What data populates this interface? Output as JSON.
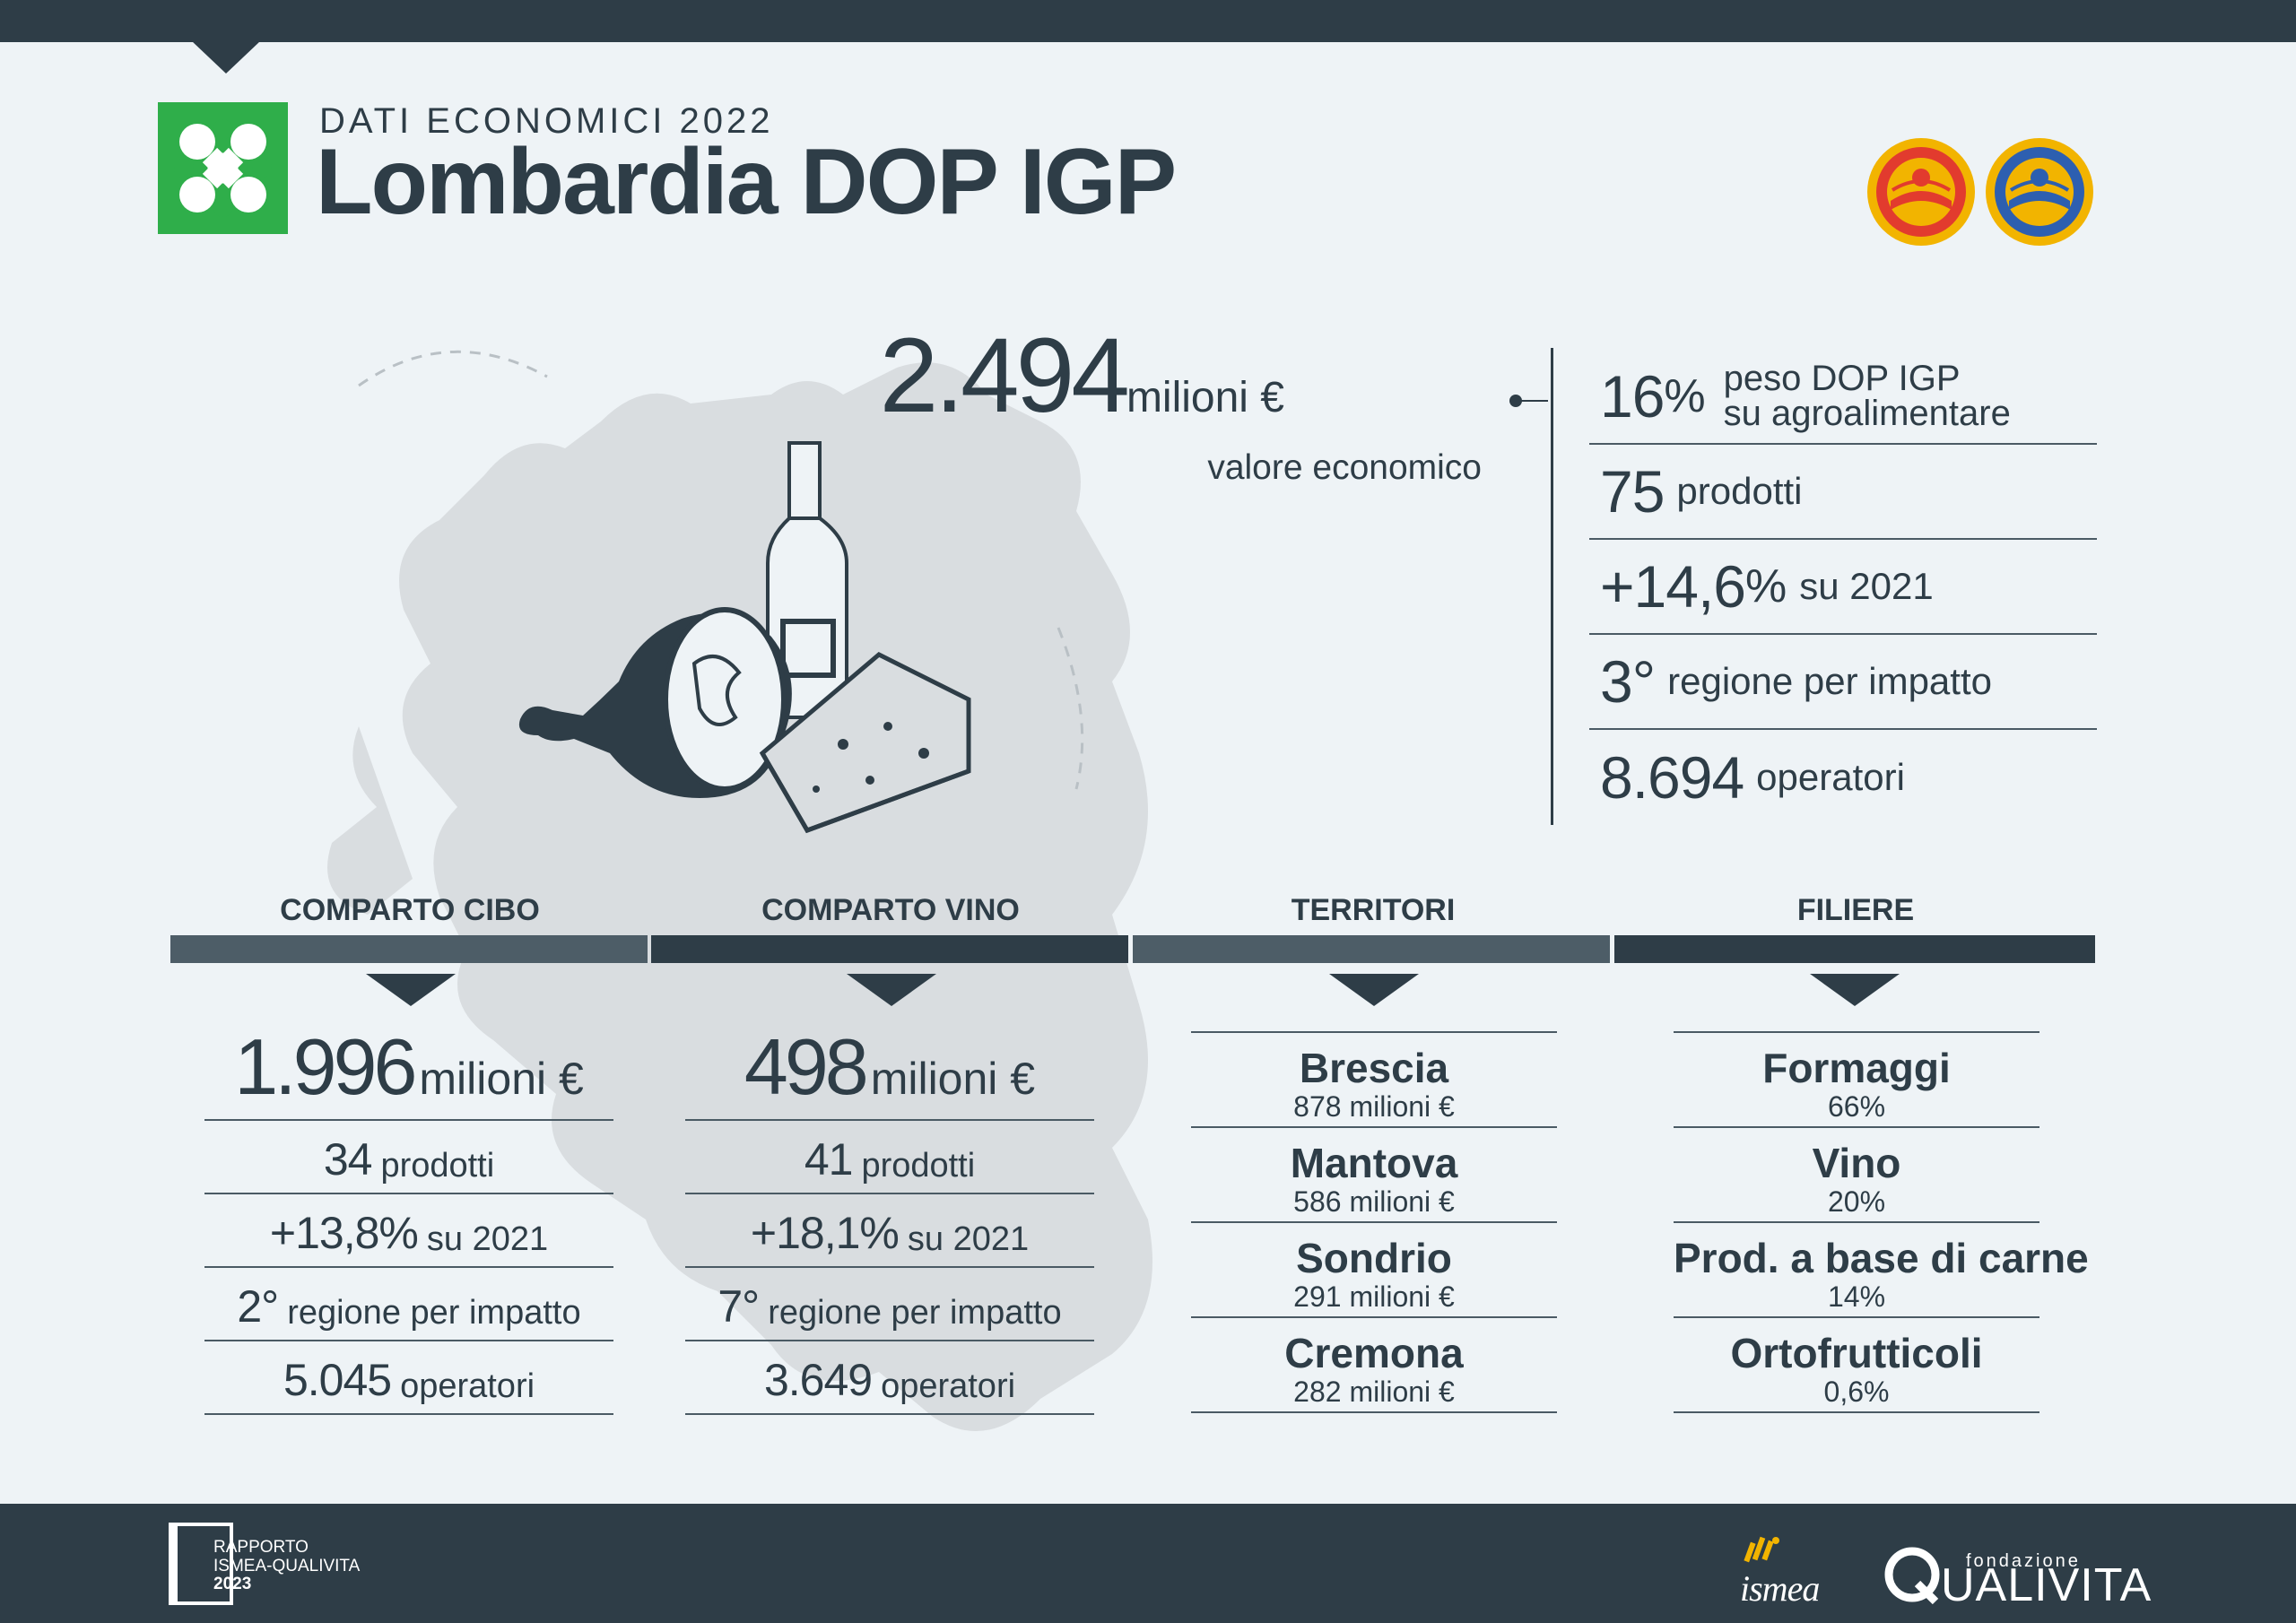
{
  "header": {
    "subtitle": "DATI ECONOMICI 2022",
    "title": "Lombardia DOP IGP"
  },
  "colors": {
    "dark": "#2e3d47",
    "accent_green": "#2fae4a",
    "bar_light": "#4d5d67",
    "background": "#eef3f6"
  },
  "icons": [
    "lombardia-region-logo",
    "dop-seal-icon",
    "igp-seal-icon",
    "region-map",
    "food-illustration",
    "ismea-logo-icon",
    "qualivita-logo-icon"
  ],
  "hero": {
    "value": "2.494",
    "unit": "milioni €",
    "label": "valore economico"
  },
  "key_stats": [
    {
      "num": "16",
      "pct": "%",
      "text_line1": "peso DOP IGP",
      "text_line2": "su agroalimentare"
    },
    {
      "num": "75",
      "text": "prodotti"
    },
    {
      "num": "+14,6",
      "pct": "%",
      "text": "su 2021"
    },
    {
      "num": "3°",
      "text": "regione per impatto"
    },
    {
      "num": "8.694",
      "text": "operatori"
    }
  ],
  "sections": {
    "cibo": {
      "title": "COMPARTO CIBO",
      "value": "1.996",
      "unit": "milioni €",
      "rows": [
        {
          "n": "34",
          "t": "prodotti"
        },
        {
          "n": "+13,8%",
          "t": "su 2021"
        },
        {
          "n": "2°",
          "t": "regione per impatto"
        },
        {
          "n": "5.045",
          "t": "operatori"
        }
      ]
    },
    "vino": {
      "title": "COMPARTO VINO",
      "value": "498",
      "unit": "milioni €",
      "rows": [
        {
          "n": "41",
          "t": "prodotti"
        },
        {
          "n": "+18,1%",
          "t": "su 2021"
        },
        {
          "n": "7°",
          "t": "regione per impatto"
        },
        {
          "n": "3.649",
          "t": "operatori"
        }
      ]
    },
    "territori": {
      "title": "TERRITORI",
      "items": [
        {
          "name": "Brescia",
          "value": "878 milioni €"
        },
        {
          "name": "Mantova",
          "value": "586 milioni €"
        },
        {
          "name": "Sondrio",
          "value": "291 milioni €"
        },
        {
          "name": "Cremona",
          "value": "282 milioni €"
        }
      ]
    },
    "filiere": {
      "title": "FILIERE",
      "items": [
        {
          "name": "Formaggi",
          "value": "66%"
        },
        {
          "name": "Vino",
          "value": "20%"
        },
        {
          "name": "Prod. a base di carne",
          "value": "14%"
        },
        {
          "name": "Ortofrutticoli",
          "value": "0,6%"
        }
      ]
    }
  },
  "footer": {
    "rapporto_line1": "RAPPORTO",
    "rapporto_line2": "ISMEA-QUALIVITA",
    "rapporto_year": "2023",
    "ismea": "ismea",
    "qualivita_fondazione": "fondazione",
    "qualivita_name": "UALIVITA"
  }
}
